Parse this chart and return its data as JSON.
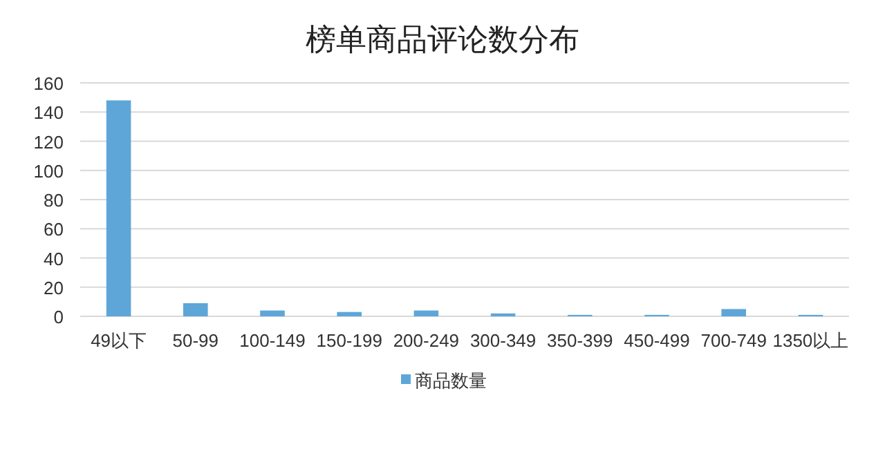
{
  "chart_data": {
    "type": "bar",
    "title": "榜单商品评论数分布",
    "categories": [
      "49以下",
      "50-99",
      "100-149",
      "150-199",
      "200-249",
      "300-349",
      "350-399",
      "450-499",
      "700-749",
      "1350以上"
    ],
    "series": [
      {
        "name": "商品数量",
        "color": "#5ea6d8",
        "values": [
          148,
          9,
          4,
          3,
          4,
          2,
          1,
          1,
          5,
          1
        ]
      }
    ],
    "ylim": [
      0,
      160
    ],
    "yticks": [
      0,
      20,
      40,
      60,
      80,
      100,
      120,
      140,
      160
    ],
    "grid": "y",
    "legend": "bottom"
  }
}
